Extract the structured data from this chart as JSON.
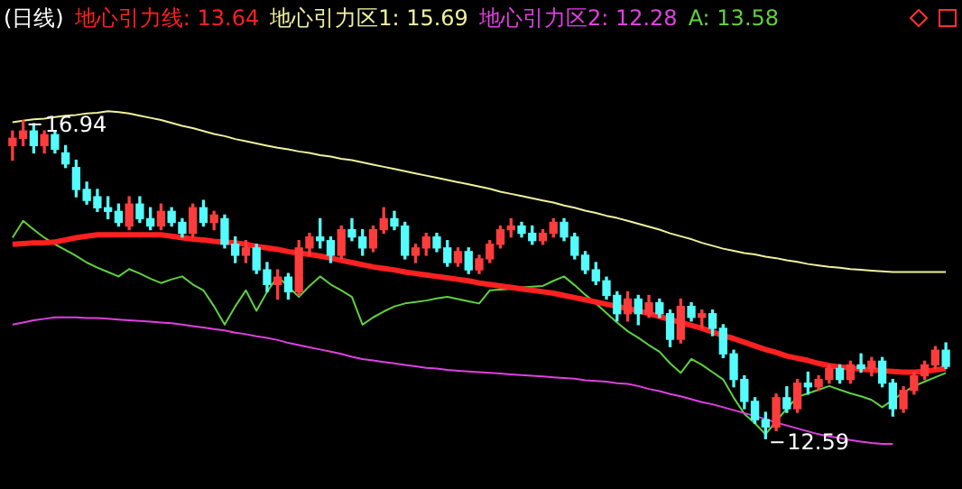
{
  "chart_data": {
    "type": "candlestick",
    "title": "(日线)",
    "categories": [
      null,
      null,
      null,
      null,
      null,
      null,
      null,
      null,
      null,
      null,
      null,
      null,
      null,
      null,
      null,
      null,
      null,
      null,
      null,
      null,
      null,
      null,
      null,
      null,
      null,
      null,
      null,
      null,
      null,
      null,
      null,
      null,
      null,
      null,
      null,
      null,
      null,
      null,
      null,
      null,
      null,
      null,
      null,
      null,
      null,
      null,
      null,
      null,
      null,
      null,
      null,
      null,
      null,
      null,
      null,
      null,
      null,
      null,
      null,
      null,
      null,
      null,
      null,
      null,
      null,
      null,
      null,
      null,
      null,
      null,
      null,
      null,
      null,
      null,
      null,
      null,
      null,
      null,
      null,
      null,
      null,
      null,
      null,
      null,
      null,
      null,
      null,
      null,
      null
    ],
    "ohlc": [
      [
        16.6,
        16.8,
        16.4,
        16.7
      ],
      [
        16.7,
        16.94,
        16.6,
        16.8
      ],
      [
        16.8,
        16.9,
        16.5,
        16.6
      ],
      [
        16.6,
        16.8,
        16.5,
        16.75
      ],
      [
        16.75,
        16.8,
        16.5,
        16.55
      ],
      [
        16.5,
        16.6,
        16.3,
        16.35
      ],
      [
        16.3,
        16.4,
        15.9,
        16.0
      ],
      [
        16.0,
        16.1,
        15.8,
        15.85
      ],
      [
        15.9,
        16.0,
        15.7,
        15.75
      ],
      [
        15.75,
        15.9,
        15.6,
        15.7
      ],
      [
        15.7,
        15.8,
        15.5,
        15.55
      ],
      [
        15.5,
        15.9,
        15.45,
        15.8
      ],
      [
        15.8,
        15.9,
        15.55,
        15.6
      ],
      [
        15.6,
        15.75,
        15.45,
        15.5
      ],
      [
        15.5,
        15.8,
        15.45,
        15.7
      ],
      [
        15.7,
        15.75,
        15.5,
        15.55
      ],
      [
        15.55,
        15.6,
        15.35,
        15.4
      ],
      [
        15.4,
        15.8,
        15.35,
        15.75
      ],
      [
        15.75,
        15.85,
        15.5,
        15.55
      ],
      [
        15.55,
        15.7,
        15.45,
        15.65
      ],
      [
        15.6,
        15.65,
        15.2,
        15.25
      ],
      [
        15.25,
        15.35,
        15.0,
        15.1
      ],
      [
        15.1,
        15.3,
        15.0,
        15.2
      ],
      [
        15.2,
        15.25,
        14.85,
        14.9
      ],
      [
        14.9,
        15.0,
        14.6,
        14.7
      ],
      [
        14.7,
        14.9,
        14.5,
        14.8
      ],
      [
        14.8,
        14.85,
        14.5,
        14.6
      ],
      [
        14.6,
        15.3,
        14.55,
        15.2
      ],
      [
        15.2,
        15.4,
        15.1,
        15.35
      ],
      [
        15.35,
        15.6,
        15.2,
        15.3
      ],
      [
        15.3,
        15.35,
        15.0,
        15.1
      ],
      [
        15.1,
        15.5,
        15.05,
        15.45
      ],
      [
        15.45,
        15.6,
        15.3,
        15.35
      ],
      [
        15.35,
        15.45,
        15.1,
        15.2
      ],
      [
        15.2,
        15.5,
        15.15,
        15.45
      ],
      [
        15.45,
        15.75,
        15.4,
        15.6
      ],
      [
        15.6,
        15.7,
        15.45,
        15.5
      ],
      [
        15.5,
        15.55,
        15.05,
        15.1
      ],
      [
        15.1,
        15.25,
        15.0,
        15.2
      ],
      [
        15.2,
        15.4,
        15.1,
        15.35
      ],
      [
        15.35,
        15.4,
        15.15,
        15.2
      ],
      [
        15.2,
        15.3,
        14.95,
        15.0
      ],
      [
        15.0,
        15.2,
        14.95,
        15.15
      ],
      [
        15.15,
        15.2,
        14.85,
        14.9
      ],
      [
        14.9,
        15.1,
        14.85,
        15.05
      ],
      [
        15.05,
        15.3,
        15.0,
        15.25
      ],
      [
        15.25,
        15.5,
        15.2,
        15.45
      ],
      [
        15.45,
        15.6,
        15.35,
        15.5
      ],
      [
        15.5,
        15.55,
        15.35,
        15.4
      ],
      [
        15.4,
        15.5,
        15.25,
        15.3
      ],
      [
        15.3,
        15.45,
        15.25,
        15.4
      ],
      [
        15.4,
        15.6,
        15.35,
        15.55
      ],
      [
        15.55,
        15.6,
        15.3,
        15.35
      ],
      [
        15.35,
        15.4,
        15.05,
        15.1
      ],
      [
        15.1,
        15.15,
        14.85,
        14.9
      ],
      [
        14.9,
        15.0,
        14.7,
        14.75
      ],
      [
        14.75,
        14.8,
        14.5,
        14.55
      ],
      [
        14.55,
        14.6,
        14.2,
        14.3
      ],
      [
        14.3,
        14.6,
        14.2,
        14.5
      ],
      [
        14.5,
        14.55,
        14.15,
        14.3
      ],
      [
        14.3,
        14.55,
        14.25,
        14.45
      ],
      [
        14.45,
        14.5,
        14.25,
        14.3
      ],
      [
        14.3,
        14.35,
        13.85,
        13.95
      ],
      [
        13.95,
        14.5,
        13.9,
        14.4
      ],
      [
        14.4,
        14.45,
        14.2,
        14.25
      ],
      [
        14.25,
        14.35,
        14.1,
        14.3
      ],
      [
        14.3,
        14.35,
        14.0,
        14.1
      ],
      [
        14.1,
        14.15,
        13.7,
        13.75
      ],
      [
        13.75,
        13.8,
        13.3,
        13.4
      ],
      [
        13.4,
        13.45,
        13.0,
        13.1
      ],
      [
        13.1,
        13.15,
        12.8,
        12.85
      ],
      [
        12.85,
        12.95,
        12.59,
        12.75
      ],
      [
        12.75,
        13.2,
        12.7,
        13.15
      ],
      [
        13.15,
        13.3,
        12.95,
        13.0
      ],
      [
        13.0,
        13.4,
        12.95,
        13.35
      ],
      [
        13.35,
        13.5,
        13.2,
        13.3
      ],
      [
        13.3,
        13.45,
        13.25,
        13.4
      ],
      [
        13.4,
        13.6,
        13.35,
        13.55
      ],
      [
        13.55,
        13.6,
        13.35,
        13.4
      ],
      [
        13.4,
        13.65,
        13.35,
        13.6
      ],
      [
        13.6,
        13.75,
        13.5,
        13.55
      ],
      [
        13.55,
        13.7,
        13.45,
        13.65
      ],
      [
        13.65,
        13.7,
        13.3,
        13.35
      ],
      [
        13.35,
        13.4,
        12.9,
        13.0
      ],
      [
        13.0,
        13.3,
        12.95,
        13.25
      ],
      [
        13.25,
        13.5,
        13.2,
        13.45
      ],
      [
        13.45,
        13.65,
        13.4,
        13.6
      ],
      [
        13.6,
        13.85,
        13.55,
        13.8
      ],
      [
        13.8,
        13.9,
        13.55,
        13.58
      ]
    ],
    "series": [
      {
        "type": "line",
        "name": "地心引力线: 13.64",
        "color": "#ff2020",
        "values": [
          15.25,
          15.26,
          15.27,
          15.27,
          15.28,
          15.31,
          15.34,
          15.36,
          15.38,
          15.38,
          15.38,
          15.38,
          15.38,
          15.38,
          15.38,
          15.36,
          15.34,
          15.32,
          15.31,
          15.29,
          15.28,
          15.27,
          15.25,
          15.22,
          15.2,
          15.18,
          15.15,
          15.13,
          15.11,
          15.09,
          15.06,
          15.03,
          15.0,
          14.97,
          14.94,
          14.92,
          14.9,
          14.87,
          14.85,
          14.83,
          14.81,
          14.79,
          14.77,
          14.75,
          14.72,
          14.7,
          14.68,
          14.66,
          14.64,
          14.62,
          14.6,
          14.58,
          14.55,
          14.52,
          14.49,
          14.46,
          14.43,
          14.4,
          14.37,
          14.34,
          14.3,
          14.26,
          14.22,
          14.18,
          14.14,
          14.1,
          14.05,
          14.0,
          13.96,
          13.91,
          13.86,
          13.81,
          13.77,
          13.72,
          13.69,
          13.66,
          13.62,
          13.59,
          13.57,
          13.56,
          13.54,
          13.53,
          13.52,
          13.51,
          13.5,
          13.5,
          13.51,
          13.53,
          13.55
        ]
      },
      {
        "type": "line",
        "name": "地心引力区1: 15.69",
        "color": "#f0f0a0",
        "values": [
          16.92,
          16.94,
          16.96,
          16.97,
          16.99,
          17.01,
          17.02,
          17.04,
          17.05,
          17.07,
          17.06,
          17.04,
          17.01,
          16.98,
          16.95,
          16.91,
          16.87,
          16.84,
          16.8,
          16.76,
          16.73,
          16.69,
          16.66,
          16.63,
          16.6,
          16.57,
          16.55,
          16.52,
          16.5,
          16.47,
          16.45,
          16.42,
          16.4,
          16.37,
          16.34,
          16.31,
          16.28,
          16.25,
          16.22,
          16.19,
          16.16,
          16.13,
          16.1,
          16.07,
          16.04,
          16.01,
          15.97,
          15.94,
          15.91,
          15.88,
          15.85,
          15.82,
          15.78,
          15.75,
          15.71,
          15.68,
          15.64,
          15.61,
          15.57,
          15.53,
          15.49,
          15.45,
          15.4,
          15.36,
          15.32,
          15.27,
          15.23,
          15.19,
          15.16,
          15.13,
          15.11,
          15.08,
          15.06,
          15.03,
          15.01,
          14.98,
          14.96,
          14.94,
          14.93,
          14.91,
          14.9,
          14.89,
          14.88,
          14.87,
          14.87,
          14.87,
          14.87,
          14.87,
          14.87
        ]
      },
      {
        "type": "line",
        "name": "地心引力区2: 12.28",
        "color": "#e040e0",
        "values": [
          14.15,
          14.18,
          14.21,
          14.23,
          14.25,
          14.25,
          14.25,
          14.24,
          14.24,
          14.23,
          14.22,
          14.21,
          14.2,
          14.19,
          14.18,
          14.17,
          14.15,
          14.13,
          14.11,
          14.09,
          14.07,
          14.04,
          14.02,
          13.99,
          13.97,
          13.94,
          13.9,
          13.87,
          13.84,
          13.81,
          13.78,
          13.75,
          13.71,
          13.68,
          13.66,
          13.64,
          13.62,
          13.6,
          13.58,
          13.56,
          13.55,
          13.53,
          13.52,
          13.51,
          13.5,
          13.49,
          13.48,
          13.47,
          13.46,
          13.45,
          13.44,
          13.43,
          13.42,
          13.41,
          13.39,
          13.38,
          13.37,
          13.35,
          13.34,
          13.31,
          13.27,
          13.24,
          13.2,
          13.17,
          13.13,
          13.09,
          13.06,
          13.02,
          12.98,
          12.94,
          12.9,
          12.86,
          12.81,
          12.77,
          12.73,
          12.69,
          12.65,
          12.62,
          12.6,
          12.57,
          12.55,
          12.53,
          12.52,
          12.52,
          null,
          null,
          null,
          null,
          null
        ]
      },
      {
        "type": "line",
        "name": "A: 13.58",
        "color": "#60d040",
        "values": [
          15.34,
          15.57,
          15.45,
          15.34,
          15.25,
          15.17,
          15.09,
          15.0,
          14.93,
          14.87,
          14.81,
          14.91,
          14.85,
          14.78,
          14.72,
          14.77,
          14.81,
          14.7,
          14.62,
          14.4,
          14.15,
          14.4,
          14.62,
          14.34,
          14.6,
          14.81,
          14.67,
          14.53,
          14.68,
          14.81,
          14.7,
          14.62,
          14.53,
          14.15,
          14.25,
          14.33,
          14.4,
          14.44,
          14.46,
          14.48,
          14.51,
          14.53,
          14.5,
          14.47,
          14.44,
          14.62,
          14.63,
          14.64,
          14.66,
          14.67,
          14.68,
          14.75,
          14.81,
          14.69,
          14.56,
          14.44,
          14.31,
          14.18,
          14.06,
          13.97,
          13.87,
          13.78,
          13.62,
          13.49,
          13.68,
          13.6,
          13.5,
          13.4,
          13.15,
          12.93,
          12.8,
          12.65,
          12.83,
          13.0,
          13.16,
          13.21,
          13.26,
          13.31,
          13.26,
          13.21,
          13.17,
          13.12,
          13.02,
          13.12,
          13.22,
          13.31,
          13.37,
          13.43,
          13.49
        ]
      }
    ],
    "annotations": [
      {
        "text": "16.94",
        "y": 16.94
      },
      {
        "text": "12.59",
        "y": 12.59
      }
    ],
    "tick_labels": false,
    "marker": "none"
  }
}
